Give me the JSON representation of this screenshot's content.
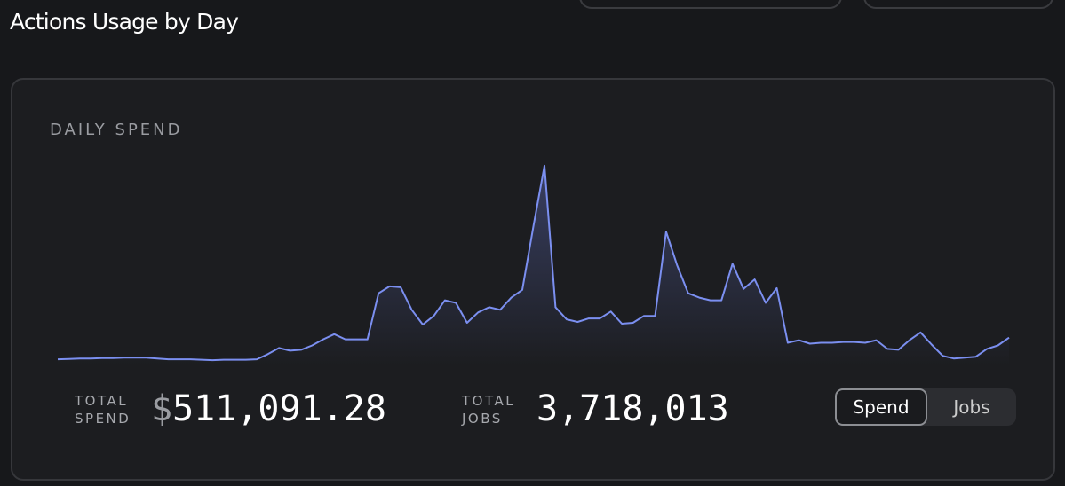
{
  "header": {
    "title": "Actions Usage by Day"
  },
  "chart_data": {
    "type": "line",
    "title": "DAILY SPEND",
    "color": "#7b8ff0",
    "values": [
      7,
      7.5,
      8,
      8,
      8.5,
      8.5,
      9,
      9,
      9,
      8,
      7,
      7,
      7,
      6.5,
      6,
      6.5,
      6.5,
      6.5,
      7,
      13,
      20,
      17,
      18,
      23,
      30,
      36,
      30,
      30,
      30,
      83,
      91,
      90,
      64,
      47,
      57,
      75,
      72,
      49,
      61,
      67,
      64,
      78,
      87,
      160,
      230,
      67,
      53,
      50,
      54,
      54,
      62,
      48,
      49,
      57,
      57,
      154,
      115,
      83,
      78,
      75,
      75,
      117,
      88,
      99,
      72,
      89,
      26,
      29,
      25,
      26,
      26,
      27,
      27,
      26,
      29,
      19,
      18,
      29,
      38,
      24,
      11,
      8,
      9,
      10,
      19,
      23,
      32
    ],
    "ylim": [
      0,
      240
    ]
  },
  "totals": {
    "spend_label": "TOTAL SPEND",
    "currency": "$",
    "spend": "511,091.28",
    "jobs_label": "TOTAL JOBS",
    "jobs": "3,718,013"
  },
  "toggle": [
    "Spend",
    "Jobs"
  ]
}
